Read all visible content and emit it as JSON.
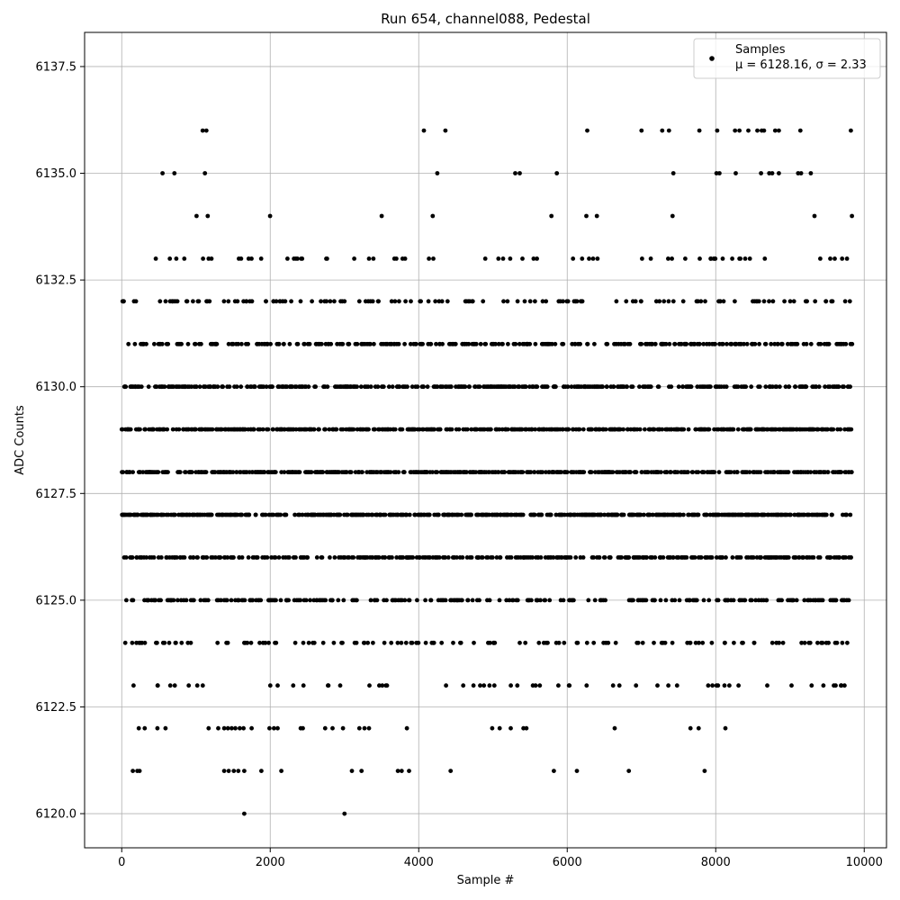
{
  "chart_data": {
    "type": "scatter",
    "title": "Run 654, channel088, Pedestal",
    "xlabel": "Sample #",
    "ylabel": "ADC Counts",
    "xlim": [
      -500,
      10300
    ],
    "ylim": [
      6119.2,
      6138.3
    ],
    "xticks": [
      0,
      2000,
      4000,
      6000,
      8000,
      10000
    ],
    "xtick_labels": [
      "0",
      "2000",
      "4000",
      "6000",
      "8000",
      "10000"
    ],
    "yticks": [
      6120.0,
      6122.5,
      6125.0,
      6127.5,
      6130.0,
      6132.5,
      6135.0,
      6137.5
    ],
    "ytick_labels": [
      "6120.0",
      "6122.5",
      "6125.0",
      "6127.5",
      "6130.0",
      "6132.5",
      "6135.0",
      "6137.5"
    ],
    "grid": true,
    "legend_position": "top-right",
    "series": [
      {
        "name": "Samples",
        "stats_label": "μ = 6128.16, σ = 2.33",
        "color": "#000000",
        "marker": "circle",
        "n_samples": 9840,
        "level_weights": {
          "6120": 0.0002,
          "6121": 0.002,
          "6122": 0.004,
          "6123": 0.018,
          "6124": 0.036,
          "6125": 0.08,
          "6126": 0.115,
          "6127": 0.152,
          "6128": 0.17,
          "6129": 0.155,
          "6130": 0.12,
          "6131": 0.083,
          "6132": 0.043,
          "6133": 0.016,
          "6134": 0.005,
          "6135": 0.0015,
          "6136": 0.001
        },
        "sparse_points": [
          {
            "x": 1650,
            "y": 6120
          },
          {
            "x": 3000,
            "y": 6120
          },
          {
            "x": 150,
            "y": 6121
          },
          {
            "x": 210,
            "y": 6121
          },
          {
            "x": 240,
            "y": 6121
          },
          {
            "x": 1380,
            "y": 6121
          },
          {
            "x": 1440,
            "y": 6121
          },
          {
            "x": 1510,
            "y": 6121
          },
          {
            "x": 1570,
            "y": 6121
          },
          {
            "x": 1650,
            "y": 6121
          },
          {
            "x": 1880,
            "y": 6121
          },
          {
            "x": 2150,
            "y": 6121
          },
          {
            "x": 3100,
            "y": 6121
          },
          {
            "x": 3230,
            "y": 6121
          },
          {
            "x": 3720,
            "y": 6121
          },
          {
            "x": 3770,
            "y": 6121
          },
          {
            "x": 3870,
            "y": 6121
          },
          {
            "x": 4430,
            "y": 6121
          },
          {
            "x": 5820,
            "y": 6121
          },
          {
            "x": 6130,
            "y": 6121
          },
          {
            "x": 6830,
            "y": 6121
          },
          {
            "x": 7850,
            "y": 6121
          },
          {
            "x": 230,
            "y": 6122
          },
          {
            "x": 310,
            "y": 6122
          },
          {
            "x": 480,
            "y": 6122
          },
          {
            "x": 590,
            "y": 6122
          },
          {
            "x": 1170,
            "y": 6122
          },
          {
            "x": 1300,
            "y": 6122
          },
          {
            "x": 1380,
            "y": 6122
          },
          {
            "x": 1430,
            "y": 6122
          },
          {
            "x": 1480,
            "y": 6122
          },
          {
            "x": 1530,
            "y": 6122
          },
          {
            "x": 1590,
            "y": 6122
          },
          {
            "x": 1640,
            "y": 6122
          },
          {
            "x": 1750,
            "y": 6122
          },
          {
            "x": 1990,
            "y": 6122
          },
          {
            "x": 2050,
            "y": 6122
          },
          {
            "x": 2100,
            "y": 6122
          },
          {
            "x": 2410,
            "y": 6122
          },
          {
            "x": 2440,
            "y": 6122
          },
          {
            "x": 2740,
            "y": 6122
          },
          {
            "x": 2840,
            "y": 6122
          },
          {
            "x": 2980,
            "y": 6122
          },
          {
            "x": 3200,
            "y": 6122
          },
          {
            "x": 3270,
            "y": 6122
          },
          {
            "x": 3330,
            "y": 6122
          },
          {
            "x": 3840,
            "y": 6122
          },
          {
            "x": 4990,
            "y": 6122
          },
          {
            "x": 5090,
            "y": 6122
          },
          {
            "x": 5240,
            "y": 6122
          },
          {
            "x": 5410,
            "y": 6122
          },
          {
            "x": 5450,
            "y": 6122
          },
          {
            "x": 6640,
            "y": 6122
          },
          {
            "x": 7660,
            "y": 6122
          },
          {
            "x": 7770,
            "y": 6122
          },
          {
            "x": 8130,
            "y": 6122
          },
          {
            "x": 1090,
            "y": 6136
          },
          {
            "x": 1140,
            "y": 6136
          },
          {
            "x": 4070,
            "y": 6136
          },
          {
            "x": 4360,
            "y": 6136
          },
          {
            "x": 6270,
            "y": 6136
          },
          {
            "x": 7000,
            "y": 6136
          },
          {
            "x": 7280,
            "y": 6136
          },
          {
            "x": 7370,
            "y": 6136
          },
          {
            "x": 7780,
            "y": 6136
          },
          {
            "x": 8020,
            "y": 6136
          },
          {
            "x": 8260,
            "y": 6136
          },
          {
            "x": 8320,
            "y": 6136
          },
          {
            "x": 8440,
            "y": 6136
          },
          {
            "x": 8560,
            "y": 6136
          },
          {
            "x": 8620,
            "y": 6136
          },
          {
            "x": 8650,
            "y": 6136
          },
          {
            "x": 8800,
            "y": 6136
          },
          {
            "x": 8850,
            "y": 6136
          },
          {
            "x": 9140,
            "y": 6136
          },
          {
            "x": 9820,
            "y": 6136
          },
          {
            "x": 550,
            "y": 6135
          },
          {
            "x": 710,
            "y": 6135
          },
          {
            "x": 1120,
            "y": 6135
          },
          {
            "x": 4250,
            "y": 6135
          },
          {
            "x": 5300,
            "y": 6135
          },
          {
            "x": 5360,
            "y": 6135
          },
          {
            "x": 5860,
            "y": 6135
          },
          {
            "x": 7430,
            "y": 6135
          },
          {
            "x": 8010,
            "y": 6135
          },
          {
            "x": 8050,
            "y": 6135
          },
          {
            "x": 8270,
            "y": 6135
          },
          {
            "x": 8610,
            "y": 6135
          },
          {
            "x": 8720,
            "y": 6135
          },
          {
            "x": 8760,
            "y": 6135
          },
          {
            "x": 8850,
            "y": 6135
          },
          {
            "x": 9110,
            "y": 6135
          },
          {
            "x": 9150,
            "y": 6135
          },
          {
            "x": 9280,
            "y": 6135
          }
        ]
      }
    ]
  }
}
